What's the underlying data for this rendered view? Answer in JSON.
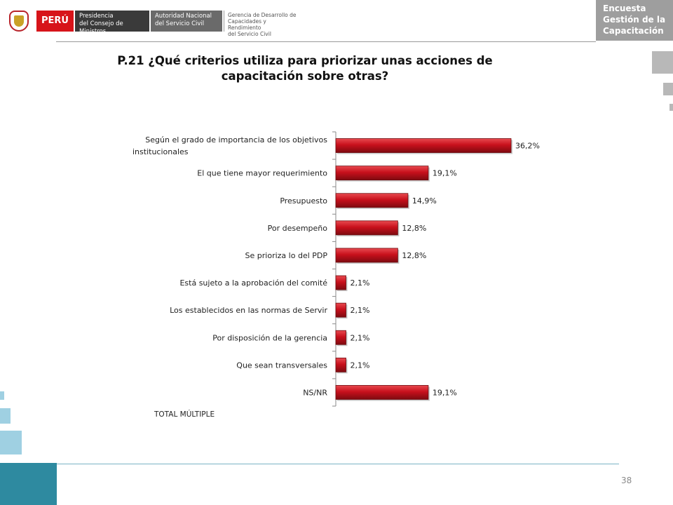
{
  "header": {
    "country": "PERÚ",
    "pcm": [
      "Presidencia",
      "del Consejo de Ministros"
    ],
    "servir": [
      "Autoridad Nacional",
      "del Servicio Civil"
    ],
    "gerencia": [
      "Gerencia de Desarrollo de",
      "Capacidades y Rendimiento",
      "del Servicio Civil"
    ],
    "brand": [
      "Encuesta",
      "Gestión de la",
      "Capacitación"
    ]
  },
  "title": "P.21 ¿Qué criterios utiliza  para priorizar unas acciones de capacitación sobre otras?",
  "colors": {
    "bar": "#c8101c",
    "bar_dark": "#7e0a10",
    "bar_light": "#e84a50",
    "footer": "#2e8aa0",
    "brand_box": "#9e9e9e"
  },
  "chart_data": {
    "type": "bar",
    "orientation": "horizontal",
    "categories": [
      [
        "Según el grado de importancia de los objetivos",
        "institucionales"
      ],
      [
        "El que tiene mayor requerimiento"
      ],
      [
        "Presupuesto"
      ],
      [
        "Por desempeño"
      ],
      [
        "Se prioriza lo del PDP"
      ],
      [
        "Está sujeto a la aprobación del comité"
      ],
      [
        "Los establecidos en las normas de Servir"
      ],
      [
        "Por disposición de la gerencia"
      ],
      [
        "Que sean transversales"
      ],
      [
        "NS/NR"
      ]
    ],
    "values": [
      36.2,
      19.1,
      14.9,
      12.8,
      12.8,
      2.1,
      2.1,
      2.1,
      2.1,
      19.1
    ],
    "value_labels": [
      "36,2%",
      "19,1%",
      "14,9%",
      "12,8%",
      "12,8%",
      "2,1%",
      "2,1%",
      "2,1%",
      "2,1%",
      "19,1%"
    ],
    "xlim": [
      0,
      36.2
    ],
    "grid": false,
    "legend": "none"
  },
  "footnote": "TOTAL MÚLTIPLE",
  "page_number": "38"
}
